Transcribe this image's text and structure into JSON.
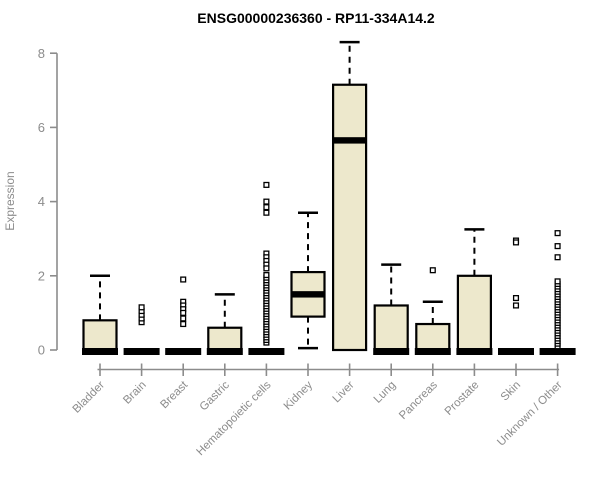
{
  "colors": {
    "background": "#ffffff",
    "box_fill": "#EDE8CC",
    "box_stroke": "#000000",
    "median_color": "#000000",
    "whisker_color": "#000000",
    "outlier_stroke": "#000000",
    "outlier_fill": "#ffffff",
    "axis_color": "#8C8C8C",
    "label_color": "#8C8C8C",
    "title_color": "#000000"
  },
  "chart_data": {
    "type": "boxplot",
    "title": "ENSG00000236360 - RP11-334A14.2",
    "ylabel": "Expression",
    "xlabel": "",
    "ylim": [
      0,
      8.5
    ],
    "yticks": [
      0,
      2,
      4,
      6,
      8
    ],
    "grid": "off",
    "legend": "none",
    "categories": [
      "Bladder",
      "Brain",
      "Breast",
      "Gastric",
      "Hematopoietic cells",
      "Kidney",
      "Liver",
      "Lung",
      "Pancreas",
      "Prostate",
      "Skin",
      "Unknown / Other"
    ],
    "series": [
      {
        "category": "Bladder",
        "whisker_low": 0,
        "q1": 0,
        "median": 0,
        "q3": 0.8,
        "whisker_high": 2.0,
        "outliers": [],
        "outlier_band": null
      },
      {
        "category": "Brain",
        "whisker_low": 0,
        "q1": 0,
        "median": 0,
        "q3": 0,
        "whisker_high": 0,
        "outliers": [
          0.75,
          0.85,
          0.95,
          1.05,
          1.15
        ],
        "outlier_band": null
      },
      {
        "category": "Breast",
        "whisker_low": 0,
        "q1": 0,
        "median": 0,
        "q3": 0,
        "whisker_high": 0,
        "outliers": [
          1.9,
          1.3,
          1.2,
          1.1,
          1.0,
          0.85,
          0.7
        ],
        "outlier_band": null
      },
      {
        "category": "Gastric",
        "whisker_low": 0,
        "q1": 0,
        "median": 0,
        "q3": 0.6,
        "whisker_high": 1.5,
        "outliers": [],
        "outlier_band": null
      },
      {
        "category": "Hematopoietic cells",
        "whisker_low": 0,
        "q1": 0,
        "median": 0,
        "q3": 0,
        "whisker_high": 0,
        "outliers": [
          4.45,
          4.0,
          3.85,
          3.7,
          2.6,
          2.5,
          2.4,
          2.3,
          2.2
        ],
        "outlier_band": [
          0.2,
          2.05
        ]
      },
      {
        "category": "Kidney",
        "whisker_low": 0.05,
        "q1": 0.9,
        "median": 1.5,
        "q3": 2.1,
        "whisker_high": 3.7,
        "outliers": [],
        "outlier_band": null
      },
      {
        "category": "Liver",
        "whisker_low": 0,
        "q1": 0,
        "median": 5.65,
        "q3": 7.15,
        "whisker_high": 8.3,
        "outliers": [],
        "outlier_band": null
      },
      {
        "category": "Lung",
        "whisker_low": 0,
        "q1": 0,
        "median": 0,
        "q3": 1.2,
        "whisker_high": 2.3,
        "outliers": [],
        "outlier_band": null
      },
      {
        "category": "Pancreas",
        "whisker_low": 0,
        "q1": 0,
        "median": 0,
        "q3": 0.7,
        "whisker_high": 1.3,
        "outliers": [
          2.15
        ],
        "outlier_band": null
      },
      {
        "category": "Prostate",
        "whisker_low": 0,
        "q1": 0,
        "median": 0,
        "q3": 2.0,
        "whisker_high": 3.25,
        "outliers": [],
        "outlier_band": null
      },
      {
        "category": "Skin",
        "whisker_low": 0,
        "q1": 0,
        "median": 0,
        "q3": 0,
        "whisker_high": 0,
        "outliers": [
          2.95,
          2.9,
          1.4,
          1.2
        ],
        "outlier_band": null
      },
      {
        "category": "Unknown / Other",
        "whisker_low": 0,
        "q1": 0,
        "median": 0,
        "q3": 0,
        "whisker_high": 0,
        "outliers": [
          3.15,
          2.8,
          2.5
        ],
        "outlier_band": [
          0.1,
          1.85
        ]
      }
    ]
  }
}
